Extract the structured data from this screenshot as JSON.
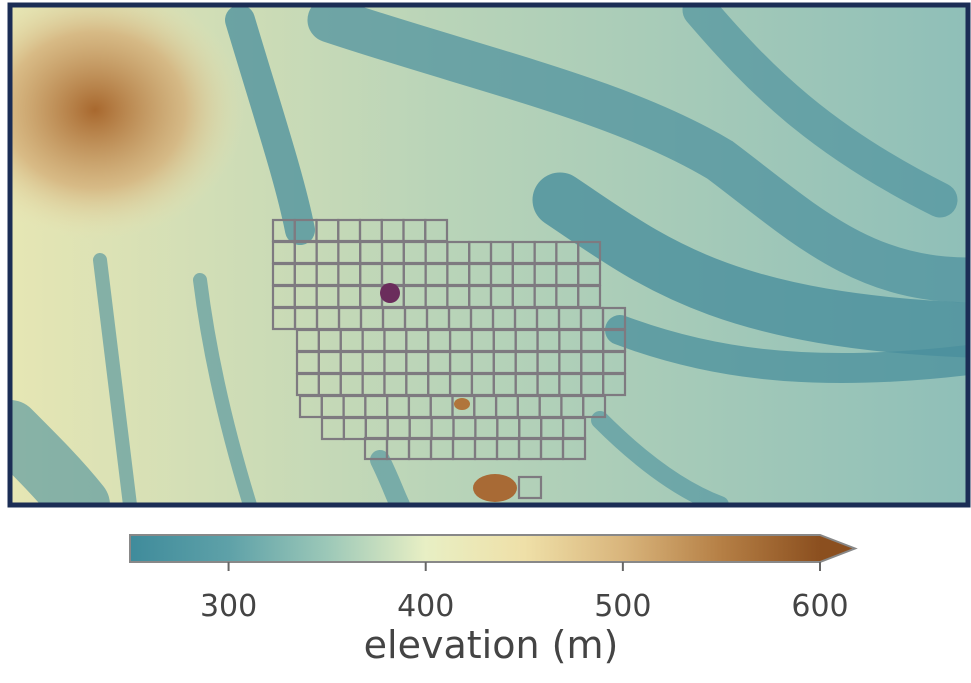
{
  "colorbar": {
    "label": "elevation (m)",
    "lim": [
      250,
      600
    ],
    "ticks": [
      300,
      400,
      500,
      600
    ],
    "colors": [
      "#3f8b9b",
      "#5ea1a8",
      "#9cc8b8",
      "#e8efc4",
      "#efe0a8",
      "#d9b57c",
      "#b57f45",
      "#8b4f1f"
    ]
  }
}
